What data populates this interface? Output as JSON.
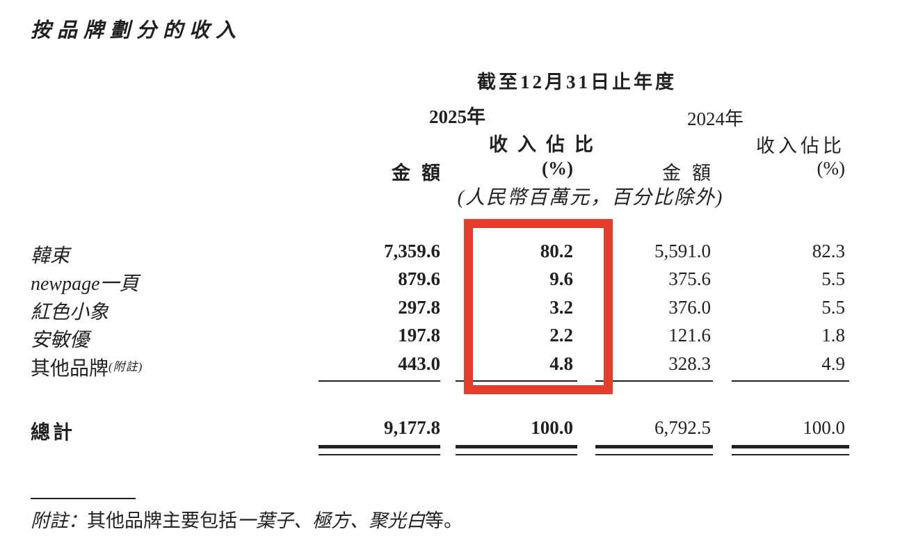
{
  "title": "按品牌劃分的收入",
  "table": {
    "period_header": "截至12月31日止年度",
    "year_2025": "2025年",
    "year_2024": "2024年",
    "col_headers": {
      "share_2025": "收入佔比",
      "share_2024": "收入佔比",
      "amount_2025": "金額",
      "pct_2025": "(%)",
      "amount_2024": "金額",
      "pct_2024": "(%)"
    },
    "unit_note": "(人民幣百萬元，百分比除外)",
    "rows": [
      {
        "brand": "韓束",
        "amount_2025": "7,359.6",
        "share_2025": "80.2",
        "amount_2024": "5,591.0",
        "share_2024": "82.3"
      },
      {
        "brand": "newpage一頁",
        "amount_2025": "879.6",
        "share_2025": "9.6",
        "amount_2024": "375.6",
        "share_2024": "5.5"
      },
      {
        "brand": "紅色小象",
        "amount_2025": "297.8",
        "share_2025": "3.2",
        "amount_2024": "376.0",
        "share_2024": "5.5"
      },
      {
        "brand": "安敏優",
        "amount_2025": "197.8",
        "share_2025": "2.2",
        "amount_2024": "121.6",
        "share_2024": "1.8"
      },
      {
        "brand": "其他品牌",
        "brand_note": "(附註)",
        "amount_2025": "443.0",
        "share_2025": "4.8",
        "amount_2024": "328.3",
        "share_2024": "4.9"
      }
    ],
    "total": {
      "label": "總計",
      "amount_2025": "9,177.8",
      "share_2025": "100.0",
      "amount_2024": "6,792.5",
      "share_2024": "100.0"
    }
  },
  "footnote": {
    "label": "附註：",
    "pre": "其他品牌主要包括",
    "brands": "一葉子、極方、聚光白",
    "post": "等。"
  },
  "annotation": {
    "highlight_color": "#e23e2b"
  }
}
